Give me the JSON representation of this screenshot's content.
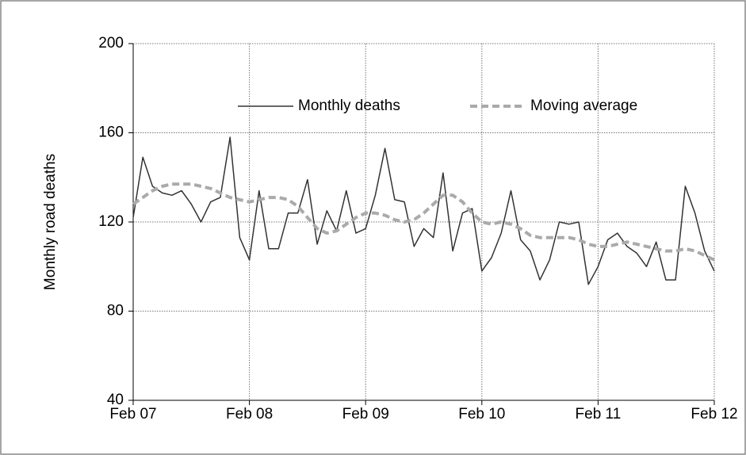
{
  "chart_data": {
    "type": "line",
    "y_label": "Monthly  road  deaths",
    "categories": [
      "Feb 07",
      null,
      null,
      null,
      null,
      null,
      null,
      null,
      null,
      null,
      null,
      null,
      "Feb 08",
      null,
      null,
      null,
      null,
      null,
      null,
      null,
      null,
      null,
      null,
      null,
      "Feb 09",
      null,
      null,
      null,
      null,
      null,
      null,
      null,
      null,
      null,
      null,
      null,
      "Feb 10",
      null,
      null,
      null,
      null,
      null,
      null,
      null,
      null,
      null,
      null,
      null,
      "Feb 11",
      null,
      null,
      null,
      null,
      null,
      null,
      null,
      null,
      null,
      null,
      null,
      "Feb 12"
    ],
    "series": [
      {
        "name": "Monthly deaths",
        "color": "#333333",
        "style": "solid",
        "values": [
          122,
          149,
          136,
          133,
          132,
          134,
          128,
          120,
          129,
          131,
          158,
          113,
          103,
          134,
          108,
          108,
          124,
          124,
          139,
          110,
          125,
          116,
          134,
          115,
          117,
          132,
          153,
          130,
          129,
          109,
          117,
          113,
          142,
          107,
          124,
          126,
          98,
          104,
          115,
          134,
          112,
          107,
          94,
          103,
          120,
          119,
          120,
          92,
          100,
          112,
          115,
          109,
          106,
          100,
          111,
          94,
          94,
          136,
          124,
          107,
          98
        ]
      },
      {
        "name": "Moving average",
        "color": "#aaaaaa",
        "style": "dashed",
        "values": [
          128,
          131,
          134,
          136,
          137,
          137,
          137,
          136,
          135,
          133,
          131,
          130,
          129,
          130,
          131,
          131,
          130,
          127,
          122,
          117,
          115,
          116,
          119,
          122,
          124,
          124,
          123,
          121,
          120,
          121,
          124,
          128,
          132,
          132,
          129,
          124,
          120,
          119,
          120,
          119,
          117,
          114,
          113,
          113,
          113,
          113,
          112,
          110,
          109,
          109,
          110,
          111,
          110,
          109,
          108,
          107,
          107,
          108,
          107,
          105,
          103
        ]
      }
    ],
    "ylim": [
      40,
      200
    ],
    "yticks": [
      40,
      80,
      120,
      160,
      200
    ],
    "grid": true,
    "legend": "top"
  }
}
